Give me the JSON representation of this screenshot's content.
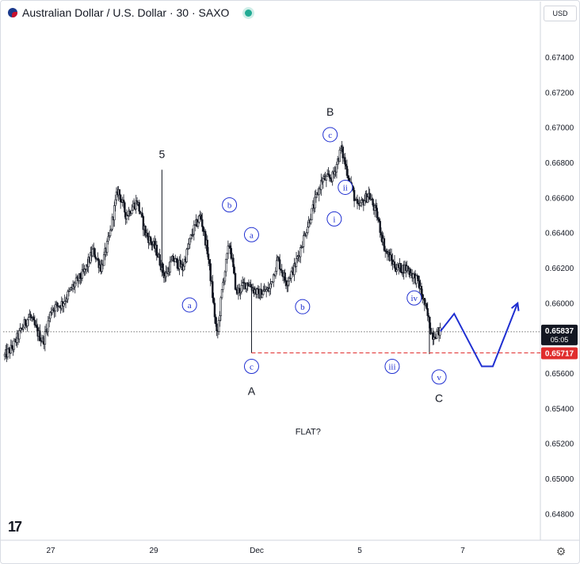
{
  "header": {
    "title": "Australian Dollar / U.S. Dollar · 30 · SAXO",
    "currency": "USD"
  },
  "icons": {
    "logo": "tradingview-logo",
    "settings": "gear-icon"
  },
  "colors": {
    "wave_blue": "#1f2fd1",
    "target_red": "#e02d2d",
    "candle": "#131722"
  },
  "chart_data": {
    "type": "candlestick",
    "y_axis": {
      "ylim": [
        0.6465,
        0.6765
      ],
      "ticks": [
        0.648,
        0.65,
        0.652,
        0.654,
        0.656,
        0.658,
        0.66,
        0.662,
        0.664,
        0.666,
        0.668,
        0.67,
        0.672,
        0.674
      ],
      "tick_labels": [
        "0.64800",
        "0.65000",
        "0.65200",
        "0.65400",
        "0.65600",
        "0.65800",
        "0.66000",
        "0.66200",
        "0.66400",
        "0.66600",
        "0.66800",
        "0.67000",
        "0.67200",
        "0.67400"
      ]
    },
    "x_axis": {
      "tick_labels": [
        "27",
        "29",
        "Dec",
        "5",
        "7"
      ]
    },
    "price_path": [
      [
        0.0,
        0.657
      ],
      [
        0.6,
        0.6575
      ],
      [
        1.2,
        0.6585
      ],
      [
        1.8,
        0.6593
      ],
      [
        2.4,
        0.6583
      ],
      [
        2.8,
        0.6578
      ],
      [
        3.4,
        0.6597
      ],
      [
        4.2,
        0.66
      ],
      [
        5.0,
        0.661
      ],
      [
        5.8,
        0.6618
      ],
      [
        6.4,
        0.663
      ],
      [
        7.0,
        0.662
      ],
      [
        7.6,
        0.6638
      ],
      [
        8.2,
        0.6665
      ],
      [
        8.8,
        0.665
      ],
      [
        9.6,
        0.6658
      ],
      [
        10.2,
        0.664
      ],
      [
        11.0,
        0.663
      ],
      [
        11.6,
        0.6615
      ],
      [
        12.2,
        0.6625
      ],
      [
        12.9,
        0.662
      ],
      [
        13.6,
        0.664
      ],
      [
        14.2,
        0.665
      ],
      [
        14.7,
        0.663
      ],
      [
        15.0,
        0.661
      ],
      [
        15.4,
        0.658
      ],
      [
        15.8,
        0.661
      ],
      [
        16.3,
        0.6635
      ],
      [
        16.8,
        0.6606
      ],
      [
        17.6,
        0.6612
      ],
      [
        18.4,
        0.6605
      ],
      [
        19.2,
        0.6608
      ],
      [
        19.8,
        0.6625
      ],
      [
        20.4,
        0.6612
      ],
      [
        21.0,
        0.662
      ],
      [
        21.8,
        0.664
      ],
      [
        22.4,
        0.6655
      ],
      [
        23.0,
        0.667
      ],
      [
        23.8,
        0.6672
      ],
      [
        24.4,
        0.6688
      ],
      [
        25.0,
        0.667
      ],
      [
        25.6,
        0.6654
      ],
      [
        26.4,
        0.6662
      ],
      [
        27.0,
        0.665
      ],
      [
        27.6,
        0.663
      ],
      [
        28.4,
        0.662
      ],
      [
        29.2,
        0.662
      ],
      [
        30.0,
        0.6612
      ],
      [
        30.6,
        0.6595
      ],
      [
        31.0,
        0.6582
      ],
      [
        31.6,
        0.6584
      ]
    ],
    "extremes": {
      "wave5_high": [
        11.4,
        0.6676
      ],
      "A_low": [
        17.9,
        0.65717
      ],
      "B_high": [
        24.4,
        0.669
      ],
      "iii_low": [
        30.8,
        0.6571
      ]
    },
    "current_price": {
      "value": 0.65837,
      "label": "0.65837",
      "countdown": "05:05"
    },
    "target_level": {
      "value": 0.65717,
      "label": "0.65717"
    },
    "projection": [
      [
        31.6,
        0.6584
      ],
      [
        32.6,
        0.6594
      ],
      [
        34.6,
        0.6564
      ],
      [
        35.4,
        0.6564
      ],
      [
        37.2,
        0.66
      ]
    ],
    "wave_labels": [
      {
        "text": "5",
        "style": "plain",
        "x": 11.4,
        "y": 0.6685
      },
      {
        "text": "b",
        "style": "circle",
        "x": 16.3,
        "y": 0.6656
      },
      {
        "text": "a",
        "style": "circle",
        "x": 17.9,
        "y": 0.6639
      },
      {
        "text": "a",
        "style": "circle",
        "x": 13.4,
        "y": 0.6599
      },
      {
        "text": "c",
        "style": "circle",
        "x": 17.9,
        "y": 0.6564
      },
      {
        "text": "A",
        "style": "plain",
        "x": 17.9,
        "y": 0.655
      },
      {
        "text": "b",
        "style": "circle",
        "x": 21.6,
        "y": 0.6598
      },
      {
        "text": "B",
        "style": "plain",
        "x": 23.6,
        "y": 0.6709
      },
      {
        "text": "c",
        "style": "circle",
        "x": 23.6,
        "y": 0.6696
      },
      {
        "text": "ii",
        "style": "circle",
        "x": 24.7,
        "y": 0.6666
      },
      {
        "text": "i",
        "style": "circle",
        "x": 23.9,
        "y": 0.6648
      },
      {
        "text": "iii",
        "style": "circle",
        "x": 28.1,
        "y": 0.6564
      },
      {
        "text": "iv",
        "style": "circle",
        "x": 29.7,
        "y": 0.6603
      },
      {
        "text": "v",
        "style": "circle",
        "x": 31.5,
        "y": 0.6558
      },
      {
        "text": "C",
        "style": "plain",
        "x": 31.5,
        "y": 0.6546
      }
    ],
    "annotation": {
      "text": "FLAT?",
      "x": 22.0,
      "y": 0.6527
    }
  }
}
